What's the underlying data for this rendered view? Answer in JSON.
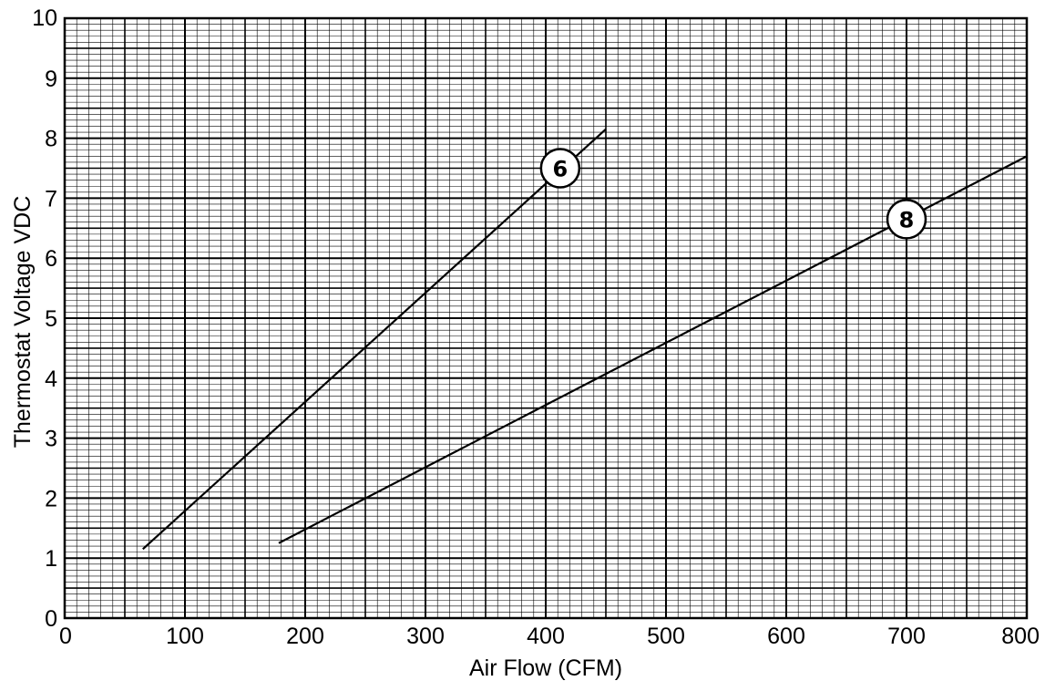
{
  "chart_data": {
    "type": "line",
    "title": "",
    "xlabel": "Air Flow (CFM)",
    "ylabel": "Thermostat Voltage VDC",
    "xlim": [
      0,
      800
    ],
    "ylim": [
      0,
      10
    ],
    "x_ticks": [
      "0",
      "100",
      "200",
      "300",
      "400",
      "500",
      "600",
      "700",
      "800"
    ],
    "y_ticks": [
      "0",
      "1",
      "2",
      "3",
      "4",
      "5",
      "6",
      "7",
      "8",
      "9",
      "10"
    ],
    "grid": true,
    "legend": "none",
    "series": [
      {
        "name": "6",
        "x": [
          65,
          450
        ],
        "y": [
          1.15,
          8.15
        ],
        "callout": {
          "label": "6",
          "x": 412,
          "y": 7.5
        }
      },
      {
        "name": "8",
        "x": [
          178,
          800
        ],
        "y": [
          1.25,
          7.7
        ],
        "callout": {
          "label": "8",
          "x": 700,
          "y": 6.65
        }
      }
    ]
  }
}
